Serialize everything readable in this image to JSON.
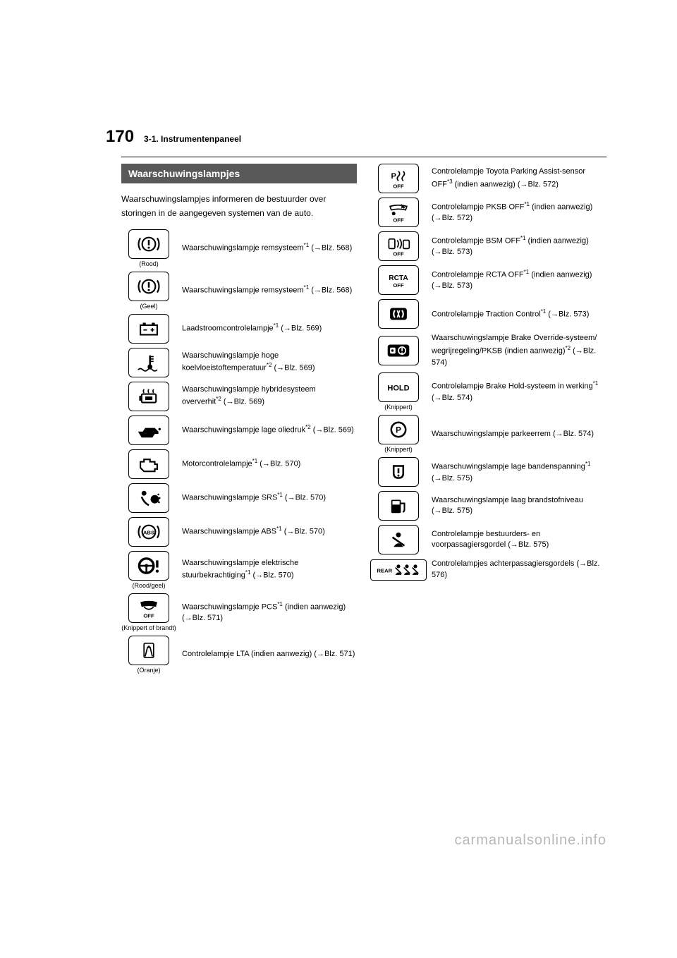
{
  "page_number": "170",
  "section_label": "3-1. Instrumentenpaneel",
  "heading": "Waarschuwingslampjes",
  "intro": "Waarschuwingslampjes informeren de bestuurder over storingen in de aangegeven systemen van de auto.",
  "watermark": "carmanualsonline.info",
  "left": [
    {
      "caption": "(Rood)",
      "html": "Waarschuwingslampje remsysteem<sup>*1</sup> (→Blz. 568)"
    },
    {
      "caption": "(Geel)",
      "html": "Waarschuwingslampje remsysteem<sup>*1</sup> (→Blz. 568)"
    },
    {
      "caption": "",
      "html": "Laadstroomcontrolelampje<sup>*1</sup> (→Blz. 569)"
    },
    {
      "caption": "",
      "html": "Waarschuwingslampje hoge koelvloeistoftemperatuur<sup>*2</sup> (→Blz. 569)"
    },
    {
      "caption": "",
      "html": "Waarschuwingslampje hybridesysteem oververhit<sup>*2</sup> (→Blz. 569)"
    },
    {
      "caption": "",
      "html": "Waarschuwingslampje lage oliedruk<sup>*2</sup> (→Blz. 569)"
    },
    {
      "caption": "",
      "html": "Motorcontrolelampje<sup>*1</sup> (→Blz. 570)"
    },
    {
      "caption": "",
      "html": "Waarschuwingslampje SRS<sup>*1</sup> (→Blz. 570)"
    },
    {
      "caption": "",
      "html": "Waarschuwingslampje ABS<sup>*1</sup> (→Blz. 570)"
    },
    {
      "caption": "(Rood/geel)",
      "html": "Waarschuwingslampje elektrische stuurbekrachtiging<sup>*1</sup> (→Blz. 570)"
    },
    {
      "caption": "(Knippert of brandt)",
      "html": "Waarschuwingslampje PCS<sup>*1</sup> (indien aanwezig) (→Blz. 571)"
    },
    {
      "caption": "(Oranje)",
      "html": "Controlelampje LTA (indien aanwezig) (→Blz. 571)"
    }
  ],
  "right": [
    {
      "caption": "",
      "html": "Controlelampje Toyota Parking Assist-sensor OFF<sup>*3</sup> (indien aanwezig) (→Blz. 572)"
    },
    {
      "caption": "",
      "html": "Controlelampje PKSB OFF<sup>*1</sup> (indien aanwezig) (→Blz. 572)"
    },
    {
      "caption": "",
      "html": "Controlelampje BSM OFF<sup>*1</sup> (indien aanwezig) (→Blz. 573)"
    },
    {
      "caption": "",
      "html": "Controlelampje RCTA OFF<sup>*1</sup> (indien aanwezig) (→Blz. 573)"
    },
    {
      "caption": "",
      "html": "Controlelampje Traction Control<sup>*1</sup> (→Blz. 573)"
    },
    {
      "caption": "",
      "html": "Waarschuwingslampje Brake Override-systeem/ wegrijregeling/PKSB (indien aanwezig)<sup>*2</sup> (→Blz. 574)"
    },
    {
      "caption": "(Knippert)",
      "html": "Controlelampje Brake Hold-systeem in werking<sup>*1</sup> (→Blz. 574)"
    },
    {
      "caption": "(Knippert)",
      "html": "Waarschuwingslampje parkeerrem (→Blz. 574)"
    },
    {
      "caption": "",
      "html": "Waarschuwingslampje lage bandenspanning<sup>*1</sup> (→Blz. 575)"
    },
    {
      "caption": "",
      "html": "Waarschuwingslampje laag brandstofniveau (→Blz. 575)"
    },
    {
      "caption": "",
      "html": "Controlelampje bestuurders- en voorpassagiersgordel (→Blz. 575)"
    },
    {
      "caption": "",
      "wide": true,
      "html": "Controlelampjes achterpassagiersgordels (→Blz. 576)"
    }
  ],
  "icons": {
    "left": [
      "brake-circle",
      "brake-circle",
      "battery",
      "temp",
      "hybrid-hot",
      "oil",
      "engine",
      "srs",
      "abs",
      "steering",
      "pcs-off",
      "lta"
    ],
    "right": [
      "p-off",
      "pksb-off",
      "bsm-off",
      "rcta-off",
      "traction",
      "brake-override",
      "hold",
      "p-circle",
      "tire",
      "fuel",
      "seatbelt",
      "rear-belt"
    ]
  }
}
